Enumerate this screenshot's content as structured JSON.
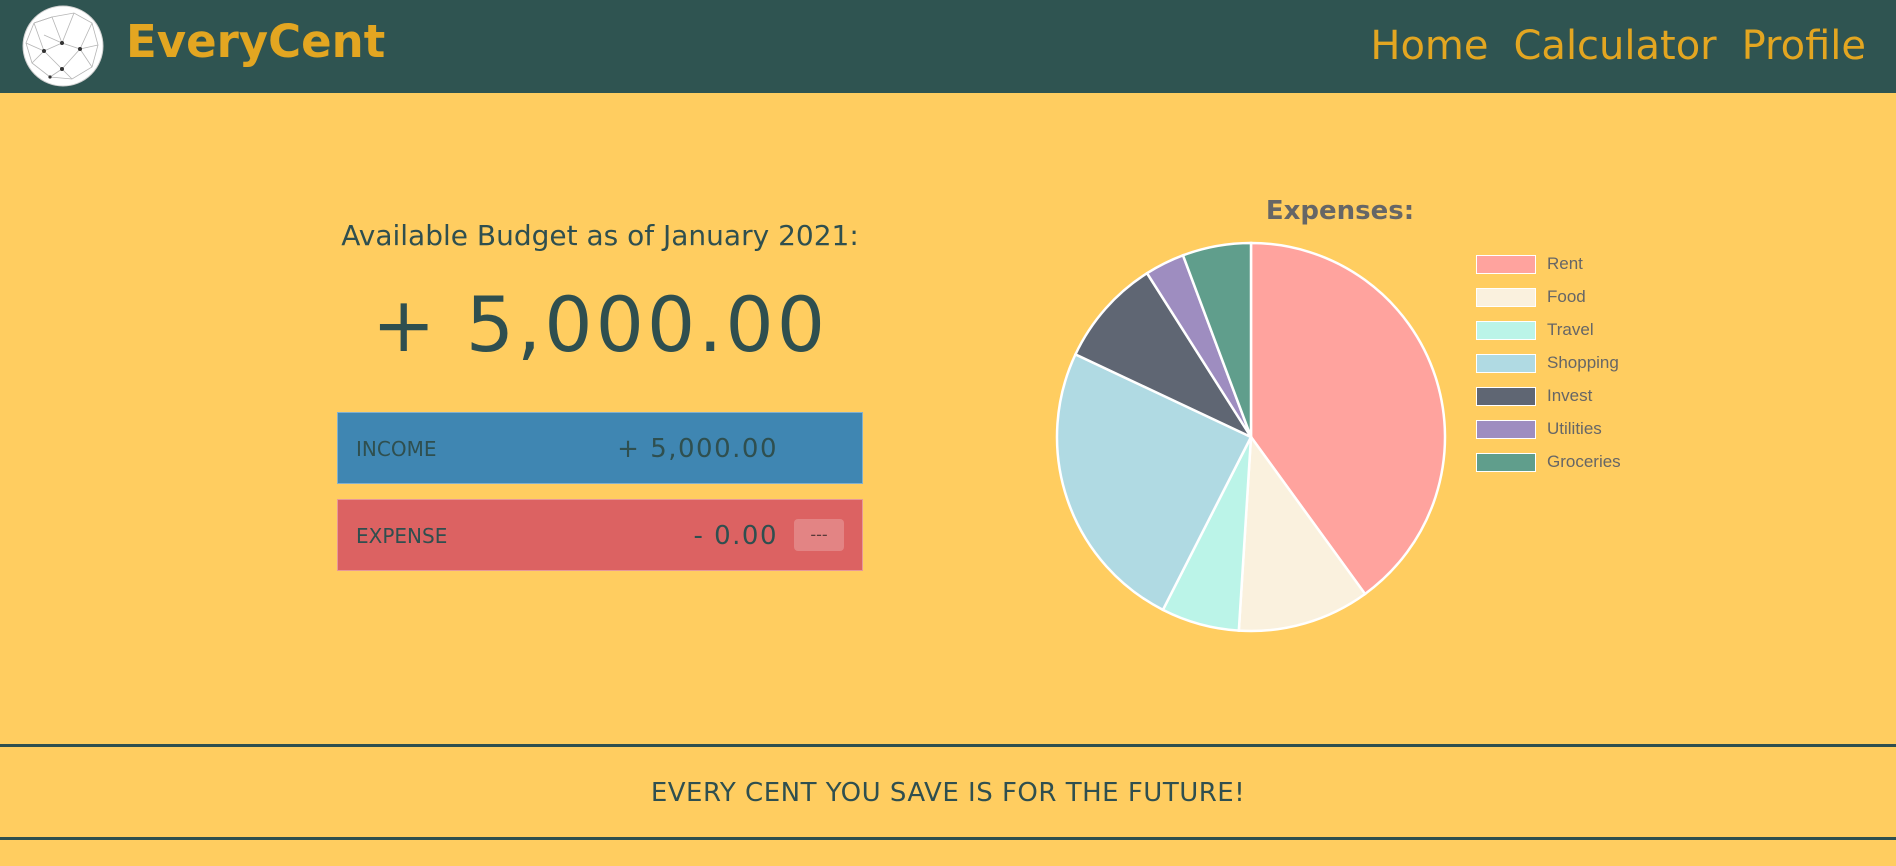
{
  "header": {
    "brand": "EveryCent",
    "logo_icon": "geodesic-globe-icon",
    "nav": [
      "Home",
      "Calculator",
      "Profile"
    ]
  },
  "budget": {
    "title": "Available Budget as of January 2021:",
    "value": "+ 5,000.00",
    "income_label": "INCOME",
    "income_value": "+ 5,000.00",
    "expense_label": "EXPENSE",
    "expense_value": "- 0.00",
    "expense_percentage": "---"
  },
  "chart_data": {
    "type": "pie",
    "title": "Expenses:",
    "legend_position": "right",
    "categories": [
      "Rent",
      "Food",
      "Travel",
      "Shopping",
      "Invest",
      "Utilities",
      "Groceries"
    ],
    "values": [
      40,
      11,
      6.5,
      24.5,
      9,
      3.3,
      5.7
    ],
    "colors": [
      "#ffa39e",
      "#faf1de",
      "#bbf4e8",
      "#b0dae3",
      "#5f6673",
      "#9e8dc0",
      "#609e8c"
    ]
  },
  "footer": {
    "tagline": "EVERY CENT YOU SAVE IS FOR THE FUTURE!"
  },
  "colors": {
    "background": "#ffcd60",
    "header": "#2f5451",
    "accent": "#e3a621",
    "income": "#3f86b2",
    "expense": "#dc6262"
  }
}
